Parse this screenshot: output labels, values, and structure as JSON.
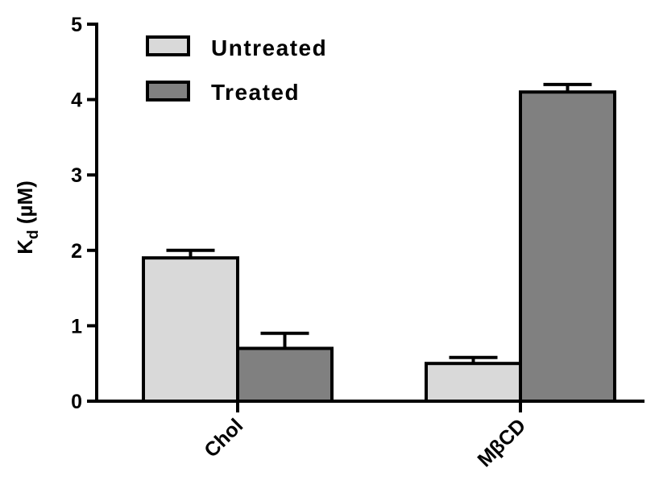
{
  "chart_data": {
    "type": "bar",
    "title": "",
    "xlabel": "",
    "ylabel_main": "K",
    "ylabel_sub": "d",
    "ylabel_unit": "(µM)",
    "ylim": [
      0,
      5
    ],
    "yticks": [
      0,
      1,
      2,
      3,
      4,
      5
    ],
    "categories": [
      "Chol",
      "MβCD"
    ],
    "legend_position": "top-left",
    "series": [
      {
        "name": "Untreated",
        "color": "#d9d9d9",
        "values": [
          1.9,
          0.5
        ],
        "errors": [
          0.1,
          0.08
        ]
      },
      {
        "name": "Treated",
        "color": "#808080",
        "values": [
          0.7,
          4.1
        ],
        "errors": [
          0.2,
          0.1
        ]
      }
    ]
  }
}
